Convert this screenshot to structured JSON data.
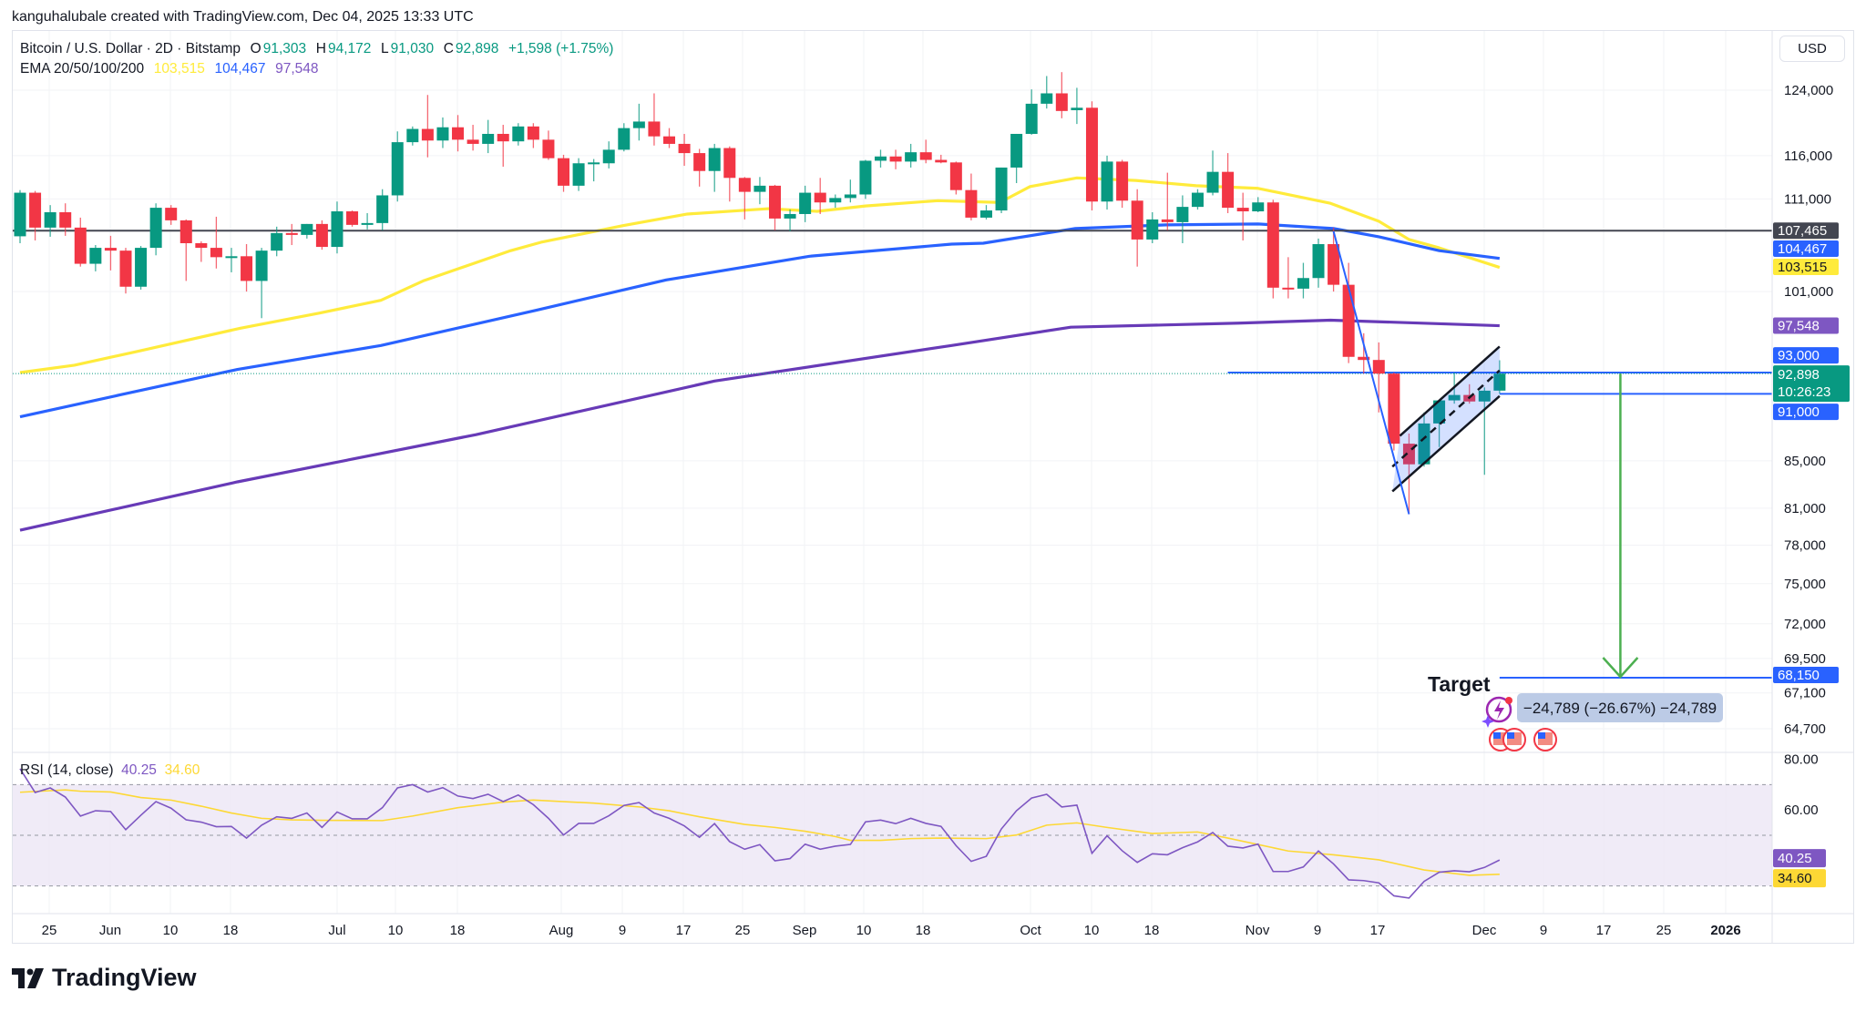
{
  "header": {
    "attribution": "kanguhalubale created with TradingView.com, Dec 04, 2025 13:33 UTC"
  },
  "legend": {
    "symbol": "Bitcoin / U.S. Dollar · 2D · Bitstamp",
    "o_label": "O",
    "o": "91,303",
    "h_label": "H",
    "h": "94,172",
    "l_label": "L",
    "l": "91,030",
    "c_label": "C",
    "c": "92,898",
    "change": "+1,598 (+1.75%)",
    "ema_label": "EMA 20/50/100/200",
    "ema_values": [
      "103,515",
      "104,467",
      "97,548"
    ]
  },
  "price_axis": {
    "currency": "USD",
    "ticks": [
      124000,
      116000,
      111000,
      101000,
      85000,
      81000,
      78000,
      75000,
      72000,
      69500,
      67100,
      64700
    ],
    "tick_labels": [
      "124,000",
      "116,000",
      "111,000",
      "101,000",
      "85,000",
      "81,000",
      "78,000",
      "75,000",
      "72,000",
      "69,500",
      "67,100",
      "64,700"
    ],
    "badges": [
      {
        "price": 107465,
        "text": "107,465",
        "color": "#434651",
        "text_color": "#ffffff"
      },
      {
        "price": 104467,
        "text": "104,467",
        "color": "#2962ff",
        "text_color": "#ffffff"
      },
      {
        "price": 103515,
        "text": "103,515",
        "color": "#ffeb3b",
        "text_color": "#131722"
      },
      {
        "price": 97548,
        "text": "97,548",
        "color": "#7e57c2",
        "text_color": "#ffffff"
      },
      {
        "price": 93000,
        "text": "93,000",
        "color": "#2962ff",
        "text_color": "#ffffff"
      },
      {
        "price": 91000,
        "text": "91,000",
        "color": "#2962ff",
        "text_color": "#ffffff"
      },
      {
        "price": 68150,
        "text": "68,150",
        "color": "#2962ff",
        "text_color": "#ffffff"
      }
    ],
    "last_price": {
      "price": 92898,
      "text": "92,898",
      "countdown": "10:26:23",
      "color": "#089981"
    }
  },
  "time_axis": {
    "labels": [
      "25",
      "Jun",
      "10",
      "18",
      "Jul",
      "10",
      "18",
      "Aug",
      "9",
      "17",
      "25",
      "Sep",
      "10",
      "18",
      "Oct",
      "10",
      "18",
      "Nov",
      "9",
      "17",
      "Dec",
      "9",
      "17",
      "25",
      "2026"
    ]
  },
  "rsi": {
    "label": "RSI (14, close)",
    "value": "40.25",
    "ma_value": "34.60",
    "ticks": [
      "80.00",
      "60.00"
    ],
    "colors": {
      "rsi": "#7e57c2",
      "ma": "#fdd835",
      "band": "#ede7f6"
    }
  },
  "annotations": {
    "target_label": "Target",
    "measure_text": "−24,789 (−26.67%) −24,789",
    "event_icons": [
      "lightning-event-icon",
      "us-flag-icon",
      "us-flag-icon",
      "us-flag-icon"
    ]
  },
  "colors": {
    "up": "#089981",
    "down": "#f23645",
    "ema_yellow": "#ffeb3b",
    "ema_blue": "#2962ff",
    "ema_purple": "#673ab7",
    "drawing_blue": "#2962ff",
    "arrow_green": "#4caf50"
  },
  "brand": {
    "logo_text": "TradingView"
  },
  "chart_data": {
    "type": "candlestick",
    "interval": "2D",
    "scale": "log",
    "y_range": [
      64700,
      124000
    ],
    "candles_ohlc": [
      [
        106850,
        112000,
        106100,
        111700
      ],
      [
        111700,
        111900,
        106400,
        107800
      ],
      [
        107800,
        110300,
        106800,
        109500
      ],
      [
        109500,
        110500,
        106900,
        107800
      ],
      [
        107800,
        108900,
        103600,
        103900
      ],
      [
        103900,
        105900,
        103100,
        105600
      ],
      [
        105600,
        106900,
        103200,
        105300
      ],
      [
        105300,
        105600,
        100800,
        101500
      ],
      [
        101500,
        105800,
        101200,
        105600
      ],
      [
        105600,
        110500,
        104800,
        110000
      ],
      [
        110000,
        110300,
        108100,
        108600
      ],
      [
        108600,
        108700,
        102100,
        106100
      ],
      [
        106100,
        106300,
        104100,
        105600
      ],
      [
        105600,
        109000,
        103400,
        104600
      ],
      [
        104600,
        105600,
        103000,
        104700
      ],
      [
        104700,
        106000,
        101000,
        102100
      ],
      [
        102100,
        105600,
        98300,
        105300
      ],
      [
        105300,
        107900,
        104700,
        107200
      ],
      [
        107200,
        108200,
        105900,
        107000
      ],
      [
        107000,
        108200,
        106600,
        108200
      ],
      [
        108200,
        108600,
        105400,
        105700
      ],
      [
        105700,
        110700,
        105000,
        109600
      ],
      [
        109600,
        109700,
        107900,
        108100
      ],
      [
        108100,
        109400,
        107600,
        108300
      ],
      [
        108300,
        112100,
        107500,
        111400
      ],
      [
        111400,
        118900,
        110700,
        117600
      ],
      [
        117600,
        119500,
        117200,
        119200
      ],
      [
        119200,
        123400,
        115800,
        117800
      ],
      [
        117800,
        120600,
        116900,
        119400
      ],
      [
        119400,
        120900,
        116500,
        117900
      ],
      [
        117900,
        119700,
        116600,
        117400
      ],
      [
        117400,
        120300,
        116300,
        118600
      ],
      [
        118600,
        119700,
        114700,
        117700
      ],
      [
        117700,
        119900,
        117200,
        119500
      ],
      [
        119500,
        119900,
        116900,
        117900
      ],
      [
        117900,
        119000,
        115500,
        115700
      ],
      [
        115700,
        116100,
        111800,
        112500
      ],
      [
        112500,
        115700,
        111900,
        115100
      ],
      [
        115100,
        115600,
        113000,
        115200
      ],
      [
        115100,
        117700,
        114500,
        116700
      ],
      [
        116700,
        119900,
        116500,
        119300
      ],
      [
        119300,
        122300,
        117800,
        120100
      ],
      [
        120100,
        123600,
        117200,
        118300
      ],
      [
        118300,
        119300,
        116900,
        117400
      ],
      [
        117400,
        118600,
        114800,
        116300
      ],
      [
        116300,
        116800,
        112400,
        114200
      ],
      [
        114200,
        117400,
        111800,
        116900
      ],
      [
        116900,
        117100,
        110700,
        113400
      ],
      [
        113400,
        113500,
        108700,
        111800
      ],
      [
        111800,
        113500,
        110400,
        112500
      ],
      [
        112500,
        112600,
        107500,
        108800
      ],
      [
        108800,
        109800,
        107400,
        109300
      ],
      [
        109300,
        112500,
        108400,
        111700
      ],
      [
        111700,
        113400,
        109300,
        110600
      ],
      [
        110600,
        111500,
        110000,
        111100
      ],
      [
        111100,
        113200,
        110600,
        111500
      ],
      [
        111500,
        115500,
        111000,
        115400
      ],
      [
        115400,
        116700,
        114600,
        115900
      ],
      [
        115900,
        116700,
        114400,
        115300
      ],
      [
        115300,
        117400,
        114600,
        116400
      ],
      [
        116400,
        117900,
        115100,
        115500
      ],
      [
        115500,
        116100,
        115100,
        115200
      ],
      [
        115200,
        115300,
        111500,
        112000
      ],
      [
        112000,
        113900,
        108600,
        108900
      ],
      [
        108900,
        110300,
        108700,
        109700
      ],
      [
        109700,
        114600,
        109400,
        114600
      ],
      [
        114600,
        118600,
        112800,
        118600
      ],
      [
        118600,
        124100,
        118500,
        122300
      ],
      [
        122300,
        125800,
        121700,
        123600
      ],
      [
        123600,
        126300,
        120500,
        121400
      ],
      [
        121500,
        124300,
        119800,
        121800
      ],
      [
        121800,
        122600,
        109700,
        110700
      ],
      [
        110700,
        116000,
        109800,
        115300
      ],
      [
        115300,
        115500,
        110000,
        110800
      ],
      [
        110800,
        112100,
        103600,
        106500
      ],
      [
        106500,
        109500,
        106100,
        108700
      ],
      [
        108700,
        114000,
        107500,
        108400
      ],
      [
        108400,
        111400,
        106100,
        110100
      ],
      [
        110100,
        112100,
        109800,
        111700
      ],
      [
        111700,
        116600,
        111400,
        114100
      ],
      [
        114100,
        116300,
        109400,
        110000
      ],
      [
        110000,
        111700,
        106400,
        109600
      ],
      [
        109600,
        111200,
        109500,
        110600
      ],
      [
        110600,
        110900,
        100300,
        101400
      ],
      [
        101400,
        104600,
        100300,
        101300
      ],
      [
        101300,
        104000,
        100300,
        102400
      ],
      [
        102400,
        106600,
        101400,
        106000
      ],
      [
        106000,
        107800,
        101000,
        101700
      ],
      [
        101700,
        104000,
        93900,
        94500
      ],
      [
        94500,
        96800,
        92900,
        94200
      ],
      [
        94200,
        95900,
        89300,
        92900
      ],
      [
        92900,
        93000,
        85900,
        86500
      ],
      [
        86500,
        87400,
        80500,
        84700
      ],
      [
        84700,
        89300,
        84500,
        88300
      ],
      [
        88300,
        90400,
        86200,
        90400
      ],
      [
        90400,
        93000,
        90100,
        90900
      ],
      [
        90900,
        91900,
        90100,
        90300
      ],
      [
        90300,
        91600,
        83800,
        91300
      ],
      [
        91303,
        94172,
        91030,
        92898
      ]
    ],
    "ema_series": [
      {
        "name": "EMA",
        "color": "#ffeb3b",
        "points": [
          [
            0,
            93000
          ],
          [
            3.6,
            93700
          ],
          [
            7.7,
            95000
          ],
          [
            14.6,
            97300
          ],
          [
            19.8,
            98800
          ],
          [
            23.9,
            100100
          ],
          [
            26.7,
            102100
          ],
          [
            32.5,
            105300
          ],
          [
            34.5,
            106200
          ],
          [
            39.9,
            108000
          ],
          [
            44.2,
            109300
          ],
          [
            49.6,
            109900
          ],
          [
            52.8,
            109600
          ],
          [
            56,
            110200
          ],
          [
            60.8,
            110800
          ],
          [
            64.9,
            110600
          ],
          [
            66.9,
            112400
          ],
          [
            70,
            113400
          ],
          [
            73.9,
            113100
          ],
          [
            77.9,
            112500
          ],
          [
            82,
            112200
          ],
          [
            86.8,
            110500
          ],
          [
            90,
            108500
          ],
          [
            92,
            106500
          ],
          [
            94,
            105600
          ],
          [
            98,
            103515
          ]
        ]
      },
      {
        "name": "EMA",
        "color": "#2962ff",
        "points": [
          [
            0,
            88900
          ],
          [
            6.6,
            90900
          ],
          [
            14.4,
            93300
          ],
          [
            23.9,
            95600
          ],
          [
            34.2,
            99100
          ],
          [
            42.8,
            102200
          ],
          [
            52.3,
            104700
          ],
          [
            61.7,
            106000
          ],
          [
            63.8,
            106100
          ],
          [
            69.9,
            107700
          ],
          [
            75.9,
            108100
          ],
          [
            82,
            108200
          ],
          [
            87,
            107700
          ],
          [
            90,
            106800
          ],
          [
            94,
            105300
          ],
          [
            98,
            104467
          ]
        ]
      },
      {
        "name": "EMA",
        "color": "#673ab7",
        "points": [
          [
            0,
            79200
          ],
          [
            14.4,
            83200
          ],
          [
            30.2,
            87300
          ],
          [
            46,
            92200
          ],
          [
            61.7,
            95600
          ],
          [
            69.6,
            97400
          ],
          [
            80.7,
            97800
          ],
          [
            86.8,
            98100
          ],
          [
            98,
            97548
          ]
        ]
      }
    ],
    "horizontal_levels": [
      {
        "price": 107465,
        "from_bar": 0,
        "color": "#434651"
      },
      {
        "price": 93000,
        "from_bar": 80,
        "color": "#2962ff"
      },
      {
        "price": 91000,
        "from_bar": 98,
        "color": "#2962ff"
      },
      {
        "price": 68150,
        "from_bar": 98,
        "color": "#2962ff"
      }
    ],
    "trendline": [
      [
        87,
        107400
      ],
      [
        92,
        80500
      ]
    ],
    "channel": {
      "upper": [
        [
          91.4,
          87200
        ],
        [
          98,
          95500
        ]
      ],
      "lower": [
        [
          90.9,
          82400
        ],
        [
          98,
          90800
        ]
      ],
      "mid": [
        [
          90.9,
          84500
        ],
        [
          98,
          93200
        ]
      ]
    },
    "target_arrow": {
      "bar": 106,
      "from": 92898,
      "to": 68150
    },
    "rsi_values": [
      76.3,
      66.9,
      68.7,
      65.1,
      57.6,
      59.7,
      59.4,
      52.2,
      57.9,
      63.3,
      60.7,
      56.1,
      55.2,
      53.4,
      53.5,
      48.9,
      54.0,
      57.3,
      56.7,
      58.8,
      53.1,
      59.2,
      56.5,
      56.5,
      60.9,
      68.7,
      70.0,
      67.1,
      68.8,
      65.5,
      64.5,
      66.2,
      63.3,
      65.9,
      62.1,
      56.7,
      50.1,
      54.7,
      54.7,
      57.7,
      61.8,
      62.9,
      58.8,
      56.7,
      53.7,
      49.2,
      54.6,
      47.5,
      44.5,
      46.3,
      39.9,
      40.8,
      46.5,
      44.5,
      45.7,
      46.4,
      55.3,
      56.0,
      54.6,
      56.7,
      54.7,
      53.5,
      45.9,
      39.7,
      41.7,
      52.5,
      59.7,
      64.7,
      66.2,
      61.2,
      61.9,
      42.9,
      49.8,
      43.9,
      39.3,
      42.7,
      42.3,
      45.1,
      47.4,
      51.1,
      45.7,
      45.0,
      46.5,
      35.7,
      35.7,
      37.5,
      43.8,
      38.7,
      32.4,
      32.1,
      31.2,
      26.1,
      25.2,
      31.8,
      35.4,
      36.0,
      35.6,
      37.3,
      40.25
    ],
    "rsi_ma_points": [
      [
        0,
        67
      ],
      [
        3,
        67.9
      ],
      [
        4,
        67.4
      ],
      [
        6,
        67.1
      ],
      [
        8,
        64.9
      ],
      [
        10,
        63.9
      ],
      [
        12,
        61.5
      ],
      [
        14,
        58.8
      ],
      [
        16,
        56.7
      ],
      [
        18,
        56.1
      ],
      [
        20,
        55.9
      ],
      [
        24,
        55.8
      ],
      [
        26,
        57.6
      ],
      [
        29,
        60.9
      ],
      [
        32,
        63.1
      ],
      [
        34,
        63.9
      ],
      [
        36,
        63.3
      ],
      [
        38,
        62.7
      ],
      [
        41,
        61.2
      ],
      [
        43,
        59.7
      ],
      [
        45,
        57.3
      ],
      [
        48,
        54.3
      ],
      [
        50,
        53.1
      ],
      [
        52,
        51.6
      ],
      [
        54,
        49.5
      ],
      [
        55,
        48.0
      ],
      [
        57,
        48.0
      ],
      [
        59,
        48.7
      ],
      [
        61,
        48.9
      ],
      [
        64,
        48.7
      ],
      [
        66,
        50.1
      ],
      [
        68,
        54.0
      ],
      [
        70,
        54.9
      ],
      [
        72,
        53.1
      ],
      [
        75,
        50.7
      ],
      [
        78,
        51.3
      ],
      [
        80,
        48.9
      ],
      [
        84,
        43.8
      ],
      [
        87,
        42.3
      ],
      [
        90,
        40.3
      ],
      [
        93,
        36.3
      ],
      [
        96,
        34.2
      ],
      [
        98,
        34.6
      ]
    ],
    "rsi_band": [
      30,
      70
    ],
    "rsi_range": [
      20,
      85
    ]
  }
}
